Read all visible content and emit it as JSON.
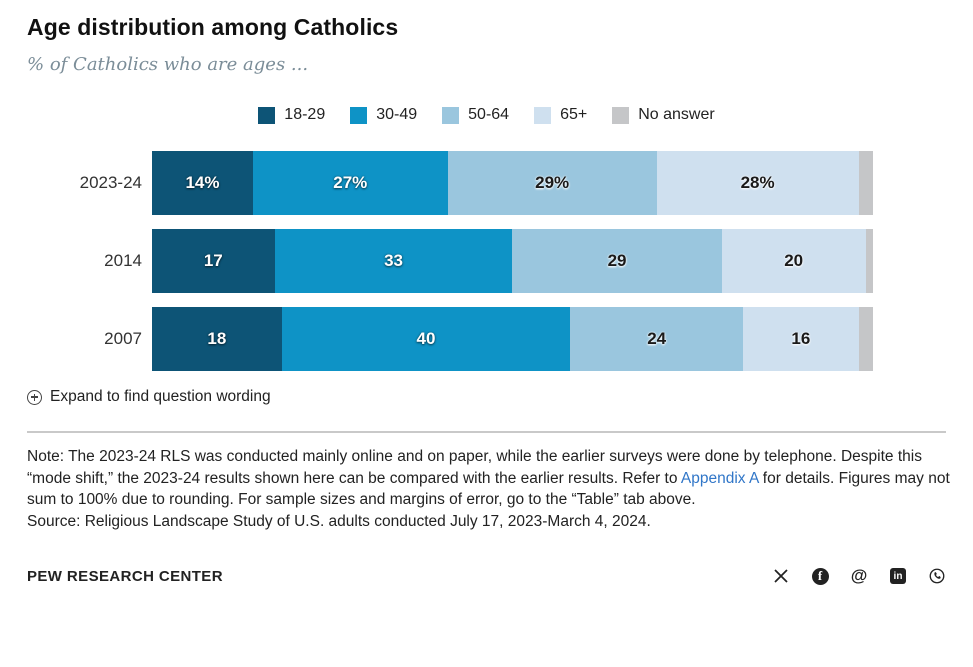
{
  "header": {
    "title": "Age distribution among Catholics",
    "subtitle": "% of Catholics who are ages ..."
  },
  "chart_data": {
    "type": "bar",
    "orientation": "horizontal",
    "stacked": true,
    "title": "Age distribution among Catholics",
    "subtitle": "% of Catholics who are ages ...",
    "legend_position": "top",
    "xlim": [
      0,
      100
    ],
    "categories": [
      "2023-24",
      "2014",
      "2007"
    ],
    "series": [
      {
        "name": "18-29",
        "color": "#0d5476",
        "label_style": "on-dark",
        "values": [
          14,
          17,
          18
        ]
      },
      {
        "name": "30-49",
        "color": "#0e93c6",
        "label_style": "on-dark",
        "values": [
          27,
          33,
          40
        ]
      },
      {
        "name": "50-64",
        "color": "#9ac6de",
        "label_style": "on-light",
        "values": [
          29,
          29,
          24
        ]
      },
      {
        "name": "65+",
        "color": "#cfe0ef",
        "label_style": "on-light",
        "values": [
          28,
          20,
          16
        ]
      },
      {
        "name": "No answer",
        "color": "#c5c6c8",
        "label_style": "none",
        "values": [
          2,
          1,
          2
        ]
      }
    ],
    "bar_labels": [
      [
        "14%",
        "27%",
        "29%",
        "28%",
        ""
      ],
      [
        "17",
        "33",
        "29",
        "20",
        ""
      ],
      [
        "18",
        "40",
        "24",
        "16",
        ""
      ]
    ]
  },
  "expand": {
    "label": "Expand to find question wording",
    "icon": "circled-plus"
  },
  "note": {
    "before_link": "Note: The 2023-24 RLS was conducted mainly online and on paper, while the earlier surveys were done by telephone. Despite this “mode shift,” the 2023-24 results shown here can be compared with the earlier results. Refer to ",
    "link": "Appendix A",
    "after_link": " for details. Figures may not sum to 100% due to rounding. For sample sizes and margins of error, go to the “Table” tab above.",
    "source": "Source: Religious Landscape Study of U.S. adults conducted July 17, 2023-March 4, 2024."
  },
  "footer": {
    "brand": "PEW RESEARCH CENTER",
    "social_icons": [
      "x",
      "facebook",
      "threads",
      "linkedin",
      "whatsapp"
    ],
    "icon_color": "#222222"
  }
}
